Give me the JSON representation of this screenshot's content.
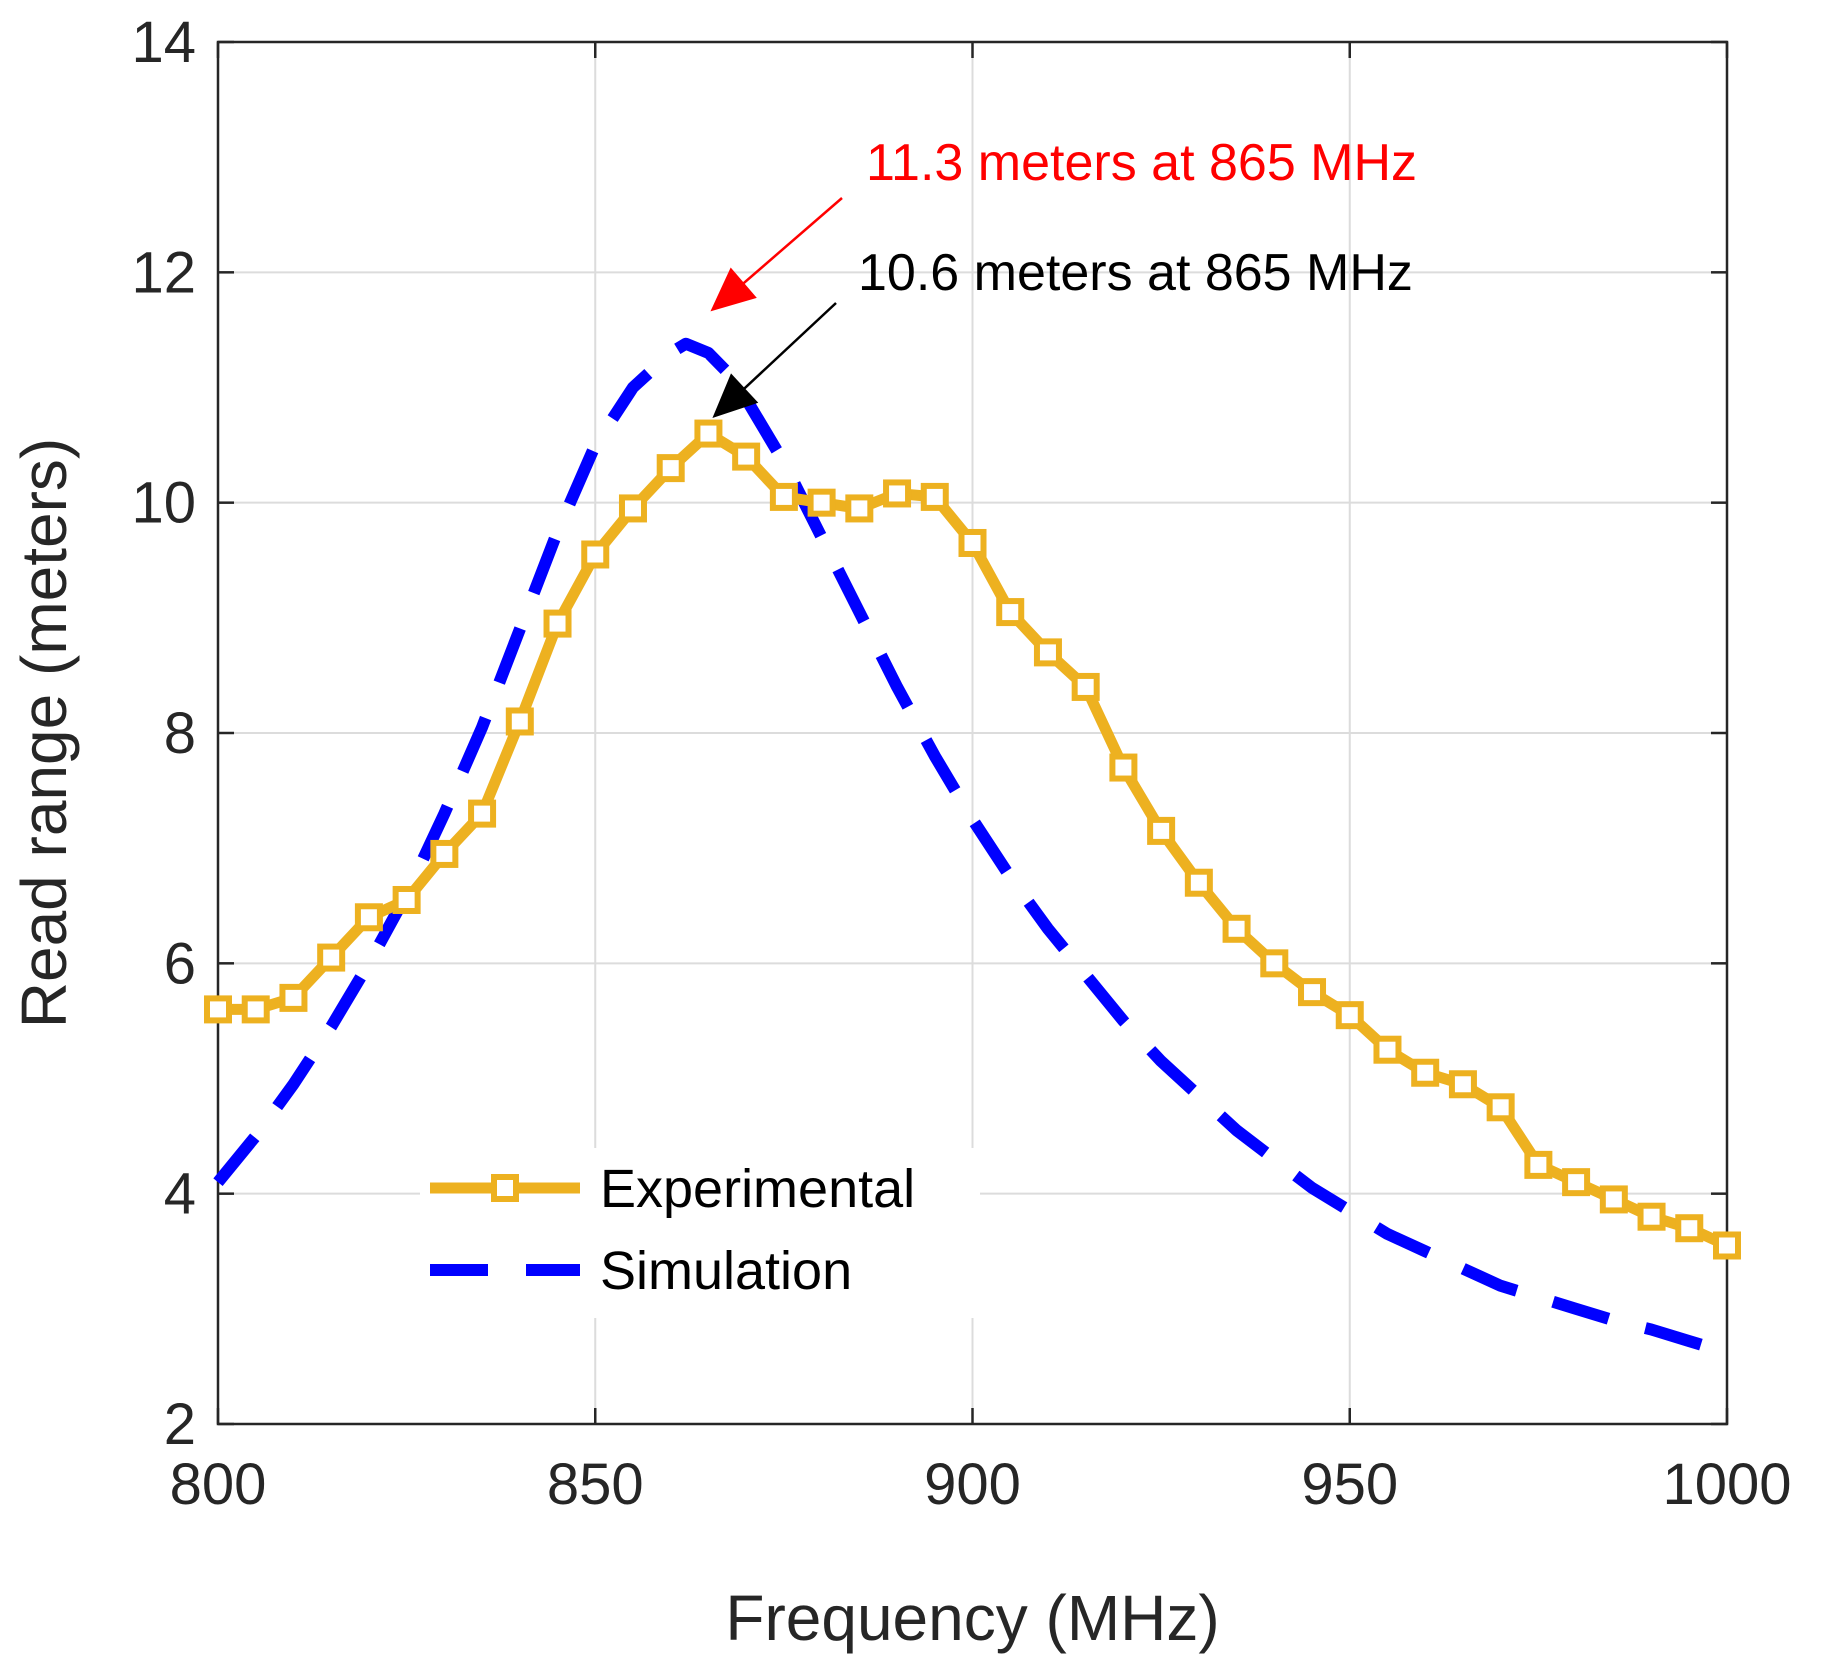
{
  "chart_data": {
    "type": "line",
    "xlabel": "Frequency (MHz)",
    "ylabel": "Read range (meters)",
    "xlim": [
      800,
      1000
    ],
    "ylim": [
      2,
      14
    ],
    "xticks": [
      800,
      850,
      900,
      950,
      1000
    ],
    "yticks": [
      2,
      4,
      6,
      8,
      10,
      12,
      14
    ],
    "grid": true,
    "legend_position": "lower-center",
    "series": [
      {
        "name": "Experimental",
        "color": "#EDB120",
        "style": "solid-square-markers",
        "x": [
          800,
          805,
          810,
          815,
          820,
          825,
          830,
          835,
          840,
          845,
          850,
          855,
          860,
          865,
          870,
          875,
          880,
          885,
          890,
          895,
          900,
          905,
          910,
          915,
          920,
          925,
          930,
          935,
          940,
          945,
          950,
          955,
          960,
          965,
          970,
          975,
          980,
          985,
          990,
          995,
          1000
        ],
        "y": [
          5.6,
          5.6,
          5.7,
          6.05,
          6.4,
          6.55,
          6.95,
          7.3,
          8.1,
          8.95,
          9.55,
          9.95,
          10.3,
          10.6,
          10.4,
          10.05,
          10.0,
          9.95,
          10.08,
          10.05,
          9.65,
          9.05,
          8.7,
          8.4,
          7.7,
          7.15,
          6.7,
          6.3,
          6.0,
          5.75,
          5.55,
          5.25,
          5.05,
          4.95,
          4.75,
          4.25,
          4.1,
          3.95,
          3.8,
          3.7,
          3.55
        ]
      },
      {
        "name": "Simulation",
        "color": "#0000FF",
        "style": "dashed",
        "x": [
          800,
          805,
          810,
          815,
          820,
          825,
          830,
          835,
          840,
          845,
          850,
          855,
          860,
          862,
          865,
          868,
          870,
          875,
          880,
          885,
          890,
          895,
          900,
          905,
          910,
          915,
          920,
          925,
          930,
          935,
          940,
          945,
          950,
          955,
          960,
          965,
          970,
          975,
          980,
          985,
          990,
          995,
          1000
        ],
        "y": [
          4.1,
          4.5,
          4.95,
          5.45,
          6.0,
          6.6,
          7.3,
          8.05,
          8.9,
          9.75,
          10.5,
          11.0,
          11.3,
          11.38,
          11.3,
          11.1,
          10.9,
          10.35,
          9.7,
          9.05,
          8.4,
          7.8,
          7.25,
          6.75,
          6.3,
          5.9,
          5.5,
          5.15,
          4.85,
          4.55,
          4.3,
          4.05,
          3.85,
          3.65,
          3.5,
          3.35,
          3.2,
          3.1,
          3.0,
          2.9,
          2.82,
          2.72,
          2.62
        ]
      }
    ],
    "annotations": [
      {
        "text": "11.3 meters at 865 MHz",
        "color": "#FF0000",
        "target_x": 865,
        "target_y": 11.4,
        "anchor": "upper-right"
      },
      {
        "text": "10.6 meters at 865 MHz",
        "color": "#000000",
        "target_x": 865,
        "target_y": 10.7,
        "anchor": "right"
      }
    ]
  }
}
